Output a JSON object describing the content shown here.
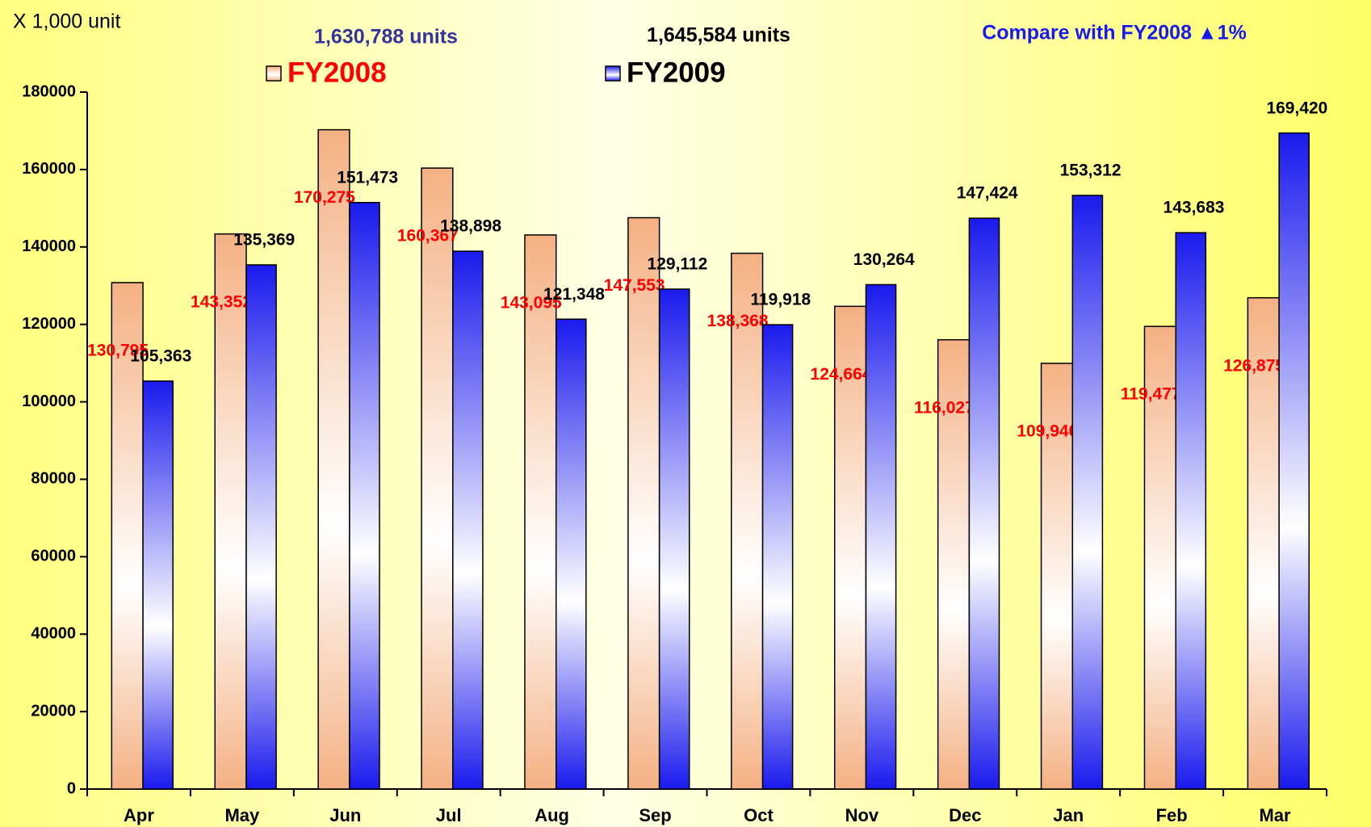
{
  "chart_data": {
    "type": "bar",
    "unit_label": "X 1,000 unit",
    "annotations": [
      "1,630,788 units",
      "1,645,584 units",
      "Compare with FY2008 ▲1%"
    ],
    "categories": [
      "Apr",
      "May",
      "Jun",
      "Jul",
      "Aug",
      "Sep",
      "Oct",
      "Nov",
      "Dec",
      "Jan",
      "Feb",
      "Mar"
    ],
    "series": [
      {
        "name": "FY2008",
        "color": "#f4b183",
        "values": [
          130795,
          143352,
          170275,
          160367,
          143095,
          147553,
          138368,
          124664,
          116027,
          109940,
          119477,
          126875
        ],
        "value_labels": [
          "130,795",
          "143,352",
          "170,275",
          "160,367",
          "143,095",
          "147,553",
          "138,368",
          "124,664",
          "116,027",
          "109,940",
          "119,477",
          "126,875"
        ]
      },
      {
        "name": "FY2009",
        "color": "#1a1aee",
        "values": [
          105363,
          135369,
          151473,
          138898,
          121348,
          129112,
          119918,
          130264,
          147424,
          153312,
          143683,
          169420
        ],
        "value_labels": [
          "105,363",
          "135,369",
          "151,473",
          "138,898",
          "121,348",
          "129,112",
          "119,918",
          "130,264",
          "147,424",
          "153,312",
          "143,683",
          "169,420"
        ]
      }
    ],
    "ylim": [
      0,
      180000
    ],
    "yticks": [
      0,
      20000,
      40000,
      60000,
      80000,
      100000,
      120000,
      140000,
      160000,
      180000
    ]
  }
}
